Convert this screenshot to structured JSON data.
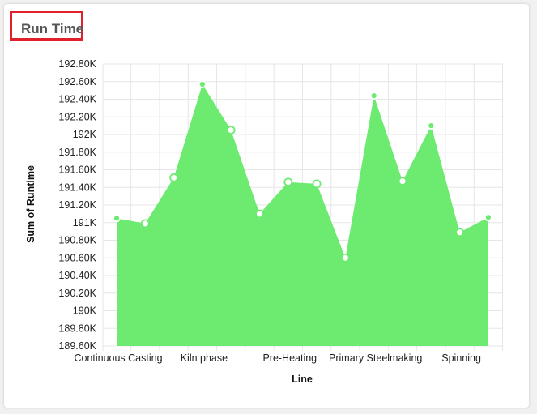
{
  "chart_data": {
    "type": "area",
    "title": "Run Time",
    "xlabel": "Line",
    "ylabel": "Sum of Runtime",
    "ylim": [
      189600,
      192800
    ],
    "y_ticks": [
      {
        "value": 189600,
        "label": "189.60K"
      },
      {
        "value": 189800,
        "label": "189.80K"
      },
      {
        "value": 190000,
        "label": "190K"
      },
      {
        "value": 190200,
        "label": "190.20K"
      },
      {
        "value": 190400,
        "label": "190.40K"
      },
      {
        "value": 190600,
        "label": "190.60K"
      },
      {
        "value": 190800,
        "label": "190.80K"
      },
      {
        "value": 191000,
        "label": "191K"
      },
      {
        "value": 191200,
        "label": "191.20K"
      },
      {
        "value": 191400,
        "label": "191.40K"
      },
      {
        "value": 191600,
        "label": "191.60K"
      },
      {
        "value": 191800,
        "label": "191.80K"
      },
      {
        "value": 192000,
        "label": "192K"
      },
      {
        "value": 192200,
        "label": "192.20K"
      },
      {
        "value": 192400,
        "label": "192.40K"
      },
      {
        "value": 192600,
        "label": "192.60K"
      },
      {
        "value": 192800,
        "label": "192.80K"
      }
    ],
    "x_tick_labels": [
      {
        "index": 0,
        "label": "Continuous Casting"
      },
      {
        "index": 3,
        "label": "Kiln phase"
      },
      {
        "index": 6,
        "label": "Pre-Heating"
      },
      {
        "index": 9,
        "label": "Primary Steelmaking"
      },
      {
        "index": 12,
        "label": "Spinning"
      }
    ],
    "values": [
      191050,
      190990,
      191510,
      192570,
      192050,
      191100,
      191460,
      191440,
      190600,
      192440,
      191470,
      192100,
      190890,
      191060
    ],
    "grid": true,
    "legend": "none",
    "fill_color": "#6deb70",
    "marker_color": "#6deb70"
  }
}
